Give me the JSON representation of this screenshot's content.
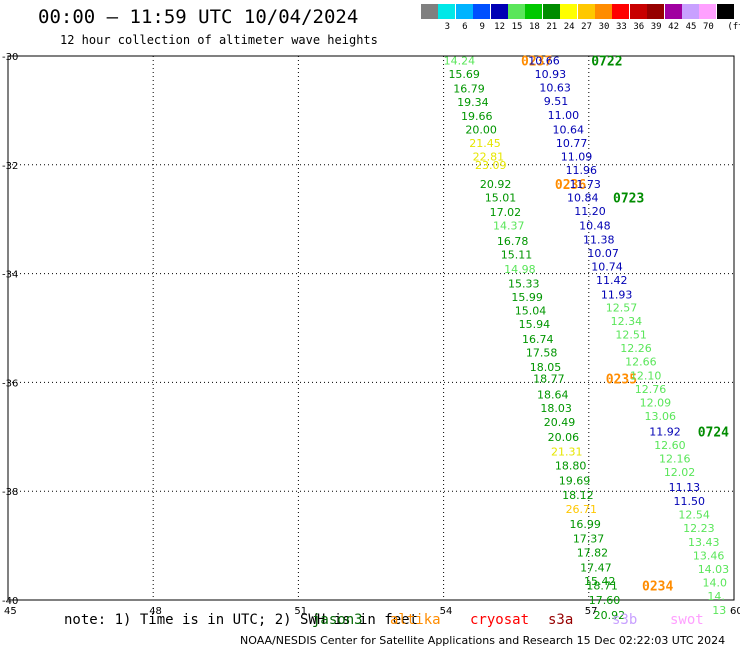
{
  "header": {
    "title": "00:00 – 11:59 UTC 10/04/2024",
    "subtitle": "12 hour collection of altimeter wave heights"
  },
  "colorbar": {
    "unit_label": "(ft)",
    "swatches": [
      {
        "color": "#808080",
        "label": ""
      },
      {
        "color": "#00e8e8",
        "label": "3"
      },
      {
        "color": "#00b4ff",
        "label": "6"
      },
      {
        "color": "#0050ff",
        "label": "9"
      },
      {
        "color": "#0000b4",
        "label": "12"
      },
      {
        "color": "#5ae65a",
        "label": "15"
      },
      {
        "color": "#00c800",
        "label": "18"
      },
      {
        "color": "#008c00",
        "label": "21"
      },
      {
        "color": "#ffff00",
        "label": "24"
      },
      {
        "color": "#ffc800",
        "label": "27"
      },
      {
        "color": "#ff8c00",
        "label": "30"
      },
      {
        "color": "#ff0000",
        "label": "33"
      },
      {
        "color": "#c80000",
        "label": "36"
      },
      {
        "color": "#960000",
        "label": "39"
      },
      {
        "color": "#a000a0",
        "label": "42"
      },
      {
        "color": "#c8a0ff",
        "label": "45"
      },
      {
        "color": "#ffa0ff",
        "label": "70"
      },
      {
        "color": "#000000",
        "label": ""
      }
    ]
  },
  "axes": {
    "lat_labels": [
      "-30",
      "-32",
      "-34",
      "-36",
      "-38",
      "-40"
    ],
    "lon_labels": [
      "45",
      "48",
      "51",
      "54",
      "57",
      "60"
    ]
  },
  "colors": {
    "yellow": "#e6e600",
    "light_green": "#5ae65a",
    "green": "#009600",
    "blue": "#0000b4",
    "orange": "#ff8c00",
    "dark_green": "#006400",
    "pass_label": "#008c00"
  },
  "tracks": [
    {
      "id": "0237",
      "label_color": "#ff8c00",
      "points": [
        {
          "lat": -30.08,
          "lon": 54.0,
          "v": "14.24",
          "c": "#5ae65a"
        },
        {
          "lat": -30.33,
          "lon": 54.1,
          "v": "15.69",
          "c": "#009600"
        },
        {
          "lat": -30.6,
          "lon": 54.2,
          "v": "16.79",
          "c": "#009600"
        },
        {
          "lat": -30.85,
          "lon": 54.28,
          "v": "19.34",
          "c": "#009600"
        },
        {
          "lat": -31.1,
          "lon": 54.36,
          "v": "19.66",
          "c": "#009600"
        },
        {
          "lat": -31.35,
          "lon": 54.45,
          "v": "20.00",
          "c": "#009600"
        },
        {
          "lat": -31.6,
          "lon": 54.53,
          "v": "21.45",
          "c": "#e6e600"
        },
        {
          "lat": -31.85,
          "lon": 54.6,
          "v": "22.81",
          "c": "#e6e600"
        },
        {
          "lat": -32.0,
          "lon": 54.65,
          "v": "23.09",
          "c": "#e6e600"
        }
      ],
      "label": {
        "lat": -30.08,
        "lon": 55.6
      }
    },
    {
      "id": "0236",
      "label_color": "#ff8c00",
      "points": [
        {
          "lat": -32.35,
          "lon": 54.75,
          "v": "20.92",
          "c": "#009600"
        },
        {
          "lat": -32.6,
          "lon": 54.85,
          "v": "15.01",
          "c": "#009600"
        },
        {
          "lat": -32.87,
          "lon": 54.95,
          "v": "17.02",
          "c": "#009600"
        },
        {
          "lat": -33.12,
          "lon": 55.02,
          "v": "14.37",
          "c": "#5ae65a"
        },
        {
          "lat": -33.4,
          "lon": 55.1,
          "v": "16.78",
          "c": "#009600"
        },
        {
          "lat": -33.65,
          "lon": 55.18,
          "v": "15.11",
          "c": "#009600"
        },
        {
          "lat": -33.92,
          "lon": 55.25,
          "v": "14.98",
          "c": "#5ae65a"
        },
        {
          "lat": -34.18,
          "lon": 55.33,
          "v": "15.33",
          "c": "#009600"
        },
        {
          "lat": -34.43,
          "lon": 55.4,
          "v": "15.99",
          "c": "#009600"
        },
        {
          "lat": -34.68,
          "lon": 55.47,
          "v": "15.04",
          "c": "#009600"
        },
        {
          "lat": -34.93,
          "lon": 55.55,
          "v": "15.94",
          "c": "#009600"
        },
        {
          "lat": -35.2,
          "lon": 55.62,
          "v": "16.74",
          "c": "#009600"
        },
        {
          "lat": -35.45,
          "lon": 55.7,
          "v": "17.58",
          "c": "#009600"
        },
        {
          "lat": -35.72,
          "lon": 55.78,
          "v": "18.05",
          "c": "#009600"
        }
      ],
      "label": {
        "lat": -32.35,
        "lon": 56.3
      }
    },
    {
      "id": "0235",
      "label_color": "#ff8c00",
      "points": [
        {
          "lat": -35.93,
          "lon": 55.85,
          "v": "18.77",
          "c": "#009600"
        },
        {
          "lat": -36.22,
          "lon": 55.93,
          "v": "18.64",
          "c": "#009600"
        },
        {
          "lat": -36.47,
          "lon": 56.0,
          "v": "18.03",
          "c": "#009600"
        },
        {
          "lat": -36.73,
          "lon": 56.07,
          "v": "20.49",
          "c": "#009600"
        },
        {
          "lat": -37.0,
          "lon": 56.15,
          "v": "20.06",
          "c": "#009600"
        },
        {
          "lat": -37.27,
          "lon": 56.22,
          "v": "21.31",
          "c": "#e6e600"
        },
        {
          "lat": -37.53,
          "lon": 56.3,
          "v": "18.80",
          "c": "#009600"
        },
        {
          "lat": -37.8,
          "lon": 56.38,
          "v": "19.69",
          "c": "#009600"
        },
        {
          "lat": -38.07,
          "lon": 56.45,
          "v": "18.12",
          "c": "#009600"
        },
        {
          "lat": -38.33,
          "lon": 56.52,
          "v": "26.71",
          "c": "#ffc800"
        },
        {
          "lat": -38.6,
          "lon": 56.6,
          "v": "16.99",
          "c": "#009600"
        },
        {
          "lat": -38.87,
          "lon": 56.67,
          "v": "17.37",
          "c": "#009600"
        },
        {
          "lat": -39.13,
          "lon": 56.75,
          "v": "17.82",
          "c": "#009600"
        },
        {
          "lat": -39.4,
          "lon": 56.82,
          "v": "17.47",
          "c": "#009600"
        },
        {
          "lat": -39.65,
          "lon": 56.9,
          "v": "15.42",
          "c": "#009600"
        }
      ],
      "label": {
        "lat": -35.93,
        "lon": 57.35
      }
    },
    {
      "id": "0234",
      "label_color": "#ff8c00",
      "points": [
        {
          "lat": -39.73,
          "lon": 56.95,
          "v": "18.71",
          "c": "#009600"
        },
        {
          "lat": -40.0,
          "lon": 57.0,
          "v": "17.60",
          "c": "#009600"
        },
        {
          "lat": -40.28,
          "lon": 57.1,
          "v": "20.92",
          "c": "#009600"
        }
      ],
      "label": {
        "lat": -39.73,
        "lon": 58.1
      }
    },
    {
      "id": "0722",
      "label_color": "#008c00",
      "points": [
        {
          "lat": -30.08,
          "lon": 55.75,
          "v": "10.66",
          "c": "#0000b4"
        },
        {
          "lat": -30.33,
          "lon": 55.88,
          "v": "10.93",
          "c": "#0000b4"
        },
        {
          "lat": -30.58,
          "lon": 55.98,
          "v": "10.63",
          "c": "#0000b4"
        },
        {
          "lat": -30.83,
          "lon": 56.07,
          "v": "9.51",
          "c": "#0000b4"
        },
        {
          "lat": -31.08,
          "lon": 56.15,
          "v": "11.00",
          "c": "#0000b4"
        },
        {
          "lat": -31.35,
          "lon": 56.25,
          "v": "10.64",
          "c": "#0000b4"
        },
        {
          "lat": -31.6,
          "lon": 56.32,
          "v": "10.77",
          "c": "#0000b4"
        },
        {
          "lat": -31.85,
          "lon": 56.42,
          "v": "11.09",
          "c": "#0000b4"
        },
        {
          "lat": -32.1,
          "lon": 56.52,
          "v": "11.96",
          "c": "#0000b4"
        },
        {
          "lat": -32.35,
          "lon": 56.6,
          "v": "11.73",
          "c": "#0000b4"
        }
      ],
      "label": {
        "lat": -30.08,
        "lon": 57.05
      }
    },
    {
      "id": "0723",
      "label_color": "#008c00",
      "points": [
        {
          "lat": -32.6,
          "lon": 56.55,
          "v": "10.84",
          "c": "#0000b4"
        },
        {
          "lat": -32.85,
          "lon": 56.7,
          "v": "11.20",
          "c": "#0000b4"
        },
        {
          "lat": -33.12,
          "lon": 56.8,
          "v": "10.48",
          "c": "#0000b4"
        },
        {
          "lat": -33.37,
          "lon": 56.88,
          "v": "11.38",
          "c": "#0000b4"
        },
        {
          "lat": -33.62,
          "lon": 56.97,
          "v": "10.07",
          "c": "#0000b4"
        },
        {
          "lat": -33.87,
          "lon": 57.05,
          "v": "10.74",
          "c": "#0000b4"
        },
        {
          "lat": -34.12,
          "lon": 57.15,
          "v": "11.42",
          "c": "#0000b4"
        },
        {
          "lat": -34.38,
          "lon": 57.25,
          "v": "11.93",
          "c": "#0000b4"
        },
        {
          "lat": -34.62,
          "lon": 57.35,
          "v": "12.57",
          "c": "#5ae65a"
        },
        {
          "lat": -34.87,
          "lon": 57.45,
          "v": "12.34",
          "c": "#5ae65a"
        },
        {
          "lat": -35.12,
          "lon": 57.55,
          "v": "12.51",
          "c": "#5ae65a"
        },
        {
          "lat": -35.37,
          "lon": 57.65,
          "v": "12.26",
          "c": "#5ae65a"
        },
        {
          "lat": -35.62,
          "lon": 57.75,
          "v": "12.66",
          "c": "#5ae65a"
        },
        {
          "lat": -35.87,
          "lon": 57.85,
          "v": "12.10",
          "c": "#5ae65a"
        },
        {
          "lat": -36.12,
          "lon": 57.95,
          "v": "12.76",
          "c": "#5ae65a"
        },
        {
          "lat": -36.37,
          "lon": 58.05,
          "v": "12.09",
          "c": "#5ae65a"
        },
        {
          "lat": -36.62,
          "lon": 58.15,
          "v": "13.06",
          "c": "#5ae65a"
        }
      ],
      "label": {
        "lat": -32.6,
        "lon": 57.5
      }
    },
    {
      "id": "0724",
      "label_color": "#008c00",
      "points": [
        {
          "lat": -36.9,
          "lon": 58.25,
          "v": "11.92",
          "c": "#0000b4"
        },
        {
          "lat": -37.15,
          "lon": 58.35,
          "v": "12.60",
          "c": "#5ae65a"
        },
        {
          "lat": -37.4,
          "lon": 58.45,
          "v": "12.16",
          "c": "#5ae65a"
        },
        {
          "lat": -37.65,
          "lon": 58.55,
          "v": "12.02",
          "c": "#5ae65a"
        },
        {
          "lat": -37.92,
          "lon": 58.65,
          "v": "11.13",
          "c": "#0000b4"
        },
        {
          "lat": -38.18,
          "lon": 58.75,
          "v": "11.50",
          "c": "#0000b4"
        },
        {
          "lat": -38.43,
          "lon": 58.85,
          "v": "12.54",
          "c": "#5ae65a"
        },
        {
          "lat": -38.68,
          "lon": 58.95,
          "v": "12.23",
          "c": "#5ae65a"
        },
        {
          "lat": -38.93,
          "lon": 59.05,
          "v": "13.43",
          "c": "#5ae65a"
        },
        {
          "lat": -39.18,
          "lon": 59.15,
          "v": "13.46",
          "c": "#5ae65a"
        },
        {
          "lat": -39.43,
          "lon": 59.25,
          "v": "14.03",
          "c": "#5ae65a"
        },
        {
          "lat": -39.68,
          "lon": 59.35,
          "v": "14.0",
          "c": "#5ae65a"
        },
        {
          "lat": -39.93,
          "lon": 59.45,
          "v": "14.",
          "c": "#5ae65a"
        },
        {
          "lat": -40.18,
          "lon": 59.55,
          "v": "13",
          "c": "#5ae65a"
        }
      ],
      "label": {
        "lat": -36.9,
        "lon": 59.25
      }
    }
  ],
  "footer": {
    "note": "note: 1) Time is in UTC; 2) SWH is in feet",
    "missions": [
      {
        "name": "jason3",
        "color": "#006400"
      },
      {
        "name": "altika",
        "color": "#ff8c00"
      },
      {
        "name": "cryosat",
        "color": "#ff0000"
      },
      {
        "name": "s3a",
        "color": "#960000"
      },
      {
        "name": "s3b",
        "color": "#c8a0ff"
      },
      {
        "name": "swot",
        "color": "#ffa0ff"
      }
    ],
    "credit": "NOAA/NESDIS Center for Satellite Applications and Research    15 Dec 02:22:03 UTC 2024"
  }
}
